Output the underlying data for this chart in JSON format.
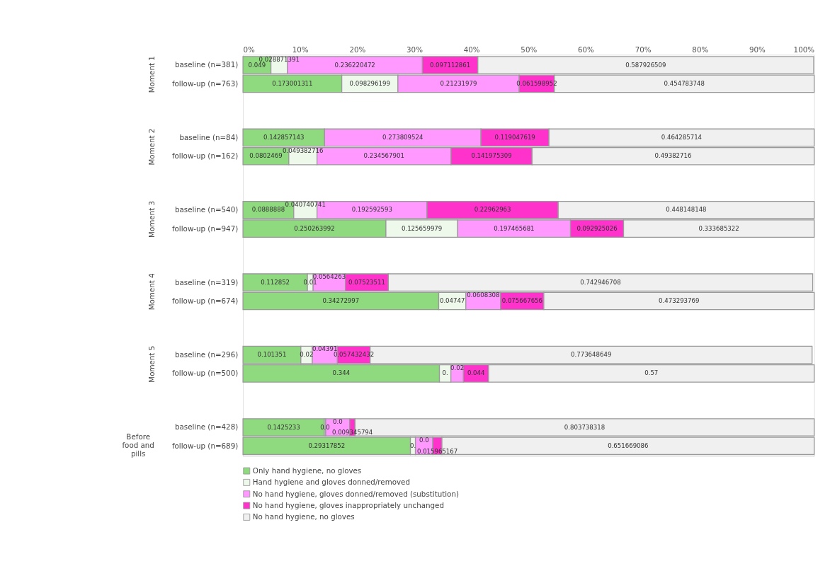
{
  "chart_data": {
    "type": "bar",
    "orientation": "horizontal",
    "stacked": true,
    "categories": [
      "baseline (n=381)",
      "follow-up (n=763)",
      "baseline (n=84)",
      "follow-up (n=162)",
      "baseline (n=540)",
      "follow-up (n=947)",
      "baseline (n=319)",
      "follow-up (n=674)",
      "baseline (n=296)",
      "follow-up (n=500)",
      "baseline (n=428)",
      "follow-up (n=689)"
    ],
    "annotations": [
      "Moment 1",
      "Moment 2",
      "Moment 3",
      "Moment 4",
      "Moment 5",
      "Before food and pills"
    ],
    "xlim": [
      0,
      1
    ],
    "xticks": [
      {
        "value": 0,
        "label": "0%"
      },
      {
        "value": 0.1,
        "label": "10%"
      },
      {
        "value": 0.2,
        "label": "20%"
      },
      {
        "value": 0.3,
        "label": "30%"
      },
      {
        "value": 0.4,
        "label": "40%"
      },
      {
        "value": 0.5,
        "label": "50%"
      },
      {
        "value": 0.6,
        "label": "60%"
      },
      {
        "value": 0.7,
        "label": "70%"
      },
      {
        "value": 0.8,
        "label": "80%"
      },
      {
        "value": 0.9,
        "label": "90%"
      },
      {
        "value": 1,
        "label": "100%"
      }
    ],
    "legend": "bottom",
    "grid": false,
    "series": [
      {
        "name": "Only hand hygiene, no gloves",
        "color": "#8fd97f",
        "values": [
          0.049,
          0.173001311,
          0.142857143,
          0.0802469,
          0.0888888,
          0.250263992,
          0.112852,
          0.34272997,
          0.101351,
          0.344,
          0.1425233,
          0.29317852
        ],
        "value_labels": [
          "0.049",
          "0.173001311",
          "0.142857143",
          "0.0802469",
          "0.0888888",
          "0.250263992",
          "0.112852",
          "0.34272997",
          "0.101351",
          "0.344",
          "0.1425233",
          "0.29317852"
        ]
      },
      {
        "name": "Hand hygiene and gloves donned/removed",
        "color": "#eef9ec",
        "values": [
          0.028871391,
          0.098296199,
          null,
          0.049382716,
          0.040740741,
          0.125659979,
          0.01,
          0.04747,
          0.02,
          0.02,
          0.002336449,
          0.008708273
        ],
        "value_labels": [
          "0.028871391",
          "0.098296199",
          null,
          "0.049382716",
          "0.040740741",
          "0.125659979",
          "0.01",
          "0.04747",
          "0.02",
          "0.",
          "0.0",
          "0."
        ]
      },
      {
        "name": "No hand hygiene, gloves donned/removed (substitution)",
        "color": "#ff99ff",
        "values": [
          0.236220472,
          0.21231979,
          0.273809524,
          0.234567901,
          0.192592593,
          0.197465681,
          0.0564263,
          0.0608308,
          0.04391,
          0.022,
          0.042056075,
          0.030478955
        ],
        "value_labels": [
          "0.236220472",
          "0.21231979",
          "0.273809524",
          "0.234567901",
          "0.192592593",
          "0.197465681",
          "0.0564263",
          "0.0608308",
          "0.04391",
          "0.02",
          "0.0",
          "0.0"
        ]
      },
      {
        "name": "No hand hygiene, gloves inappropriately unchanged",
        "color": "#ff33cc",
        "values": [
          0.097112861,
          0.061598952,
          0.119047619,
          0.141975309,
          0.22962963,
          0.092925026,
          0.07523511,
          0.075667656,
          0.057432432,
          0.044,
          0.009345794,
          0.015965167
        ],
        "value_labels": [
          "0.097112861",
          "0.061598952",
          "0.119047619",
          "0.141975309",
          "0.22962963",
          "0.092925026",
          "0.07523511",
          "0.075667656",
          "0.057432432",
          "0.044",
          "0.009345794",
          "0.015965167"
        ]
      },
      {
        "name": "No hand hygiene, no gloves",
        "color": "#f0f0f0",
        "values": [
          0.587926509,
          0.454783748,
          0.464285714,
          0.49382716,
          0.448148148,
          0.333685322,
          0.742946708,
          0.473293769,
          0.773648649,
          0.57,
          0.803738318,
          0.651669086
        ],
        "value_labels": [
          "0.587926509",
          "0.454783748",
          "0.464285714",
          "0.49382716",
          "0.448148148",
          "0.333685322",
          "0.742946708",
          "0.473293769",
          "0.773648649",
          "0.57",
          "0.803738318",
          "0.651669086"
        ]
      }
    ]
  }
}
